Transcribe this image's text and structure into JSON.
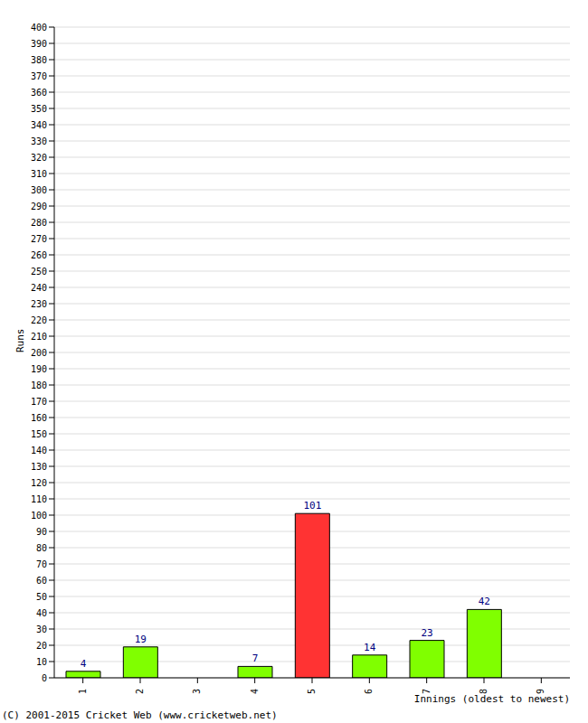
{
  "chart_data": {
    "type": "bar",
    "x_label": "Innings (oldest to newest)",
    "y_label": "Runs",
    "annotations": [
      "(C) 2001-2015 Cricket Web (www.cricketweb.net)"
    ],
    "categories": [
      "1",
      "2",
      "3",
      "4",
      "5",
      "6",
      "7",
      "8",
      "9"
    ],
    "values": [
      4,
      19,
      0,
      7,
      101,
      14,
      23,
      42,
      0
    ],
    "colors": [
      "#80ff00",
      "#80ff00",
      "#80ff00",
      "#80ff00",
      "#ff3333",
      "#80ff00",
      "#80ff00",
      "#80ff00",
      "#80ff00"
    ],
    "ylim": [
      0,
      400
    ],
    "yticks": [
      0,
      10,
      20,
      30,
      40,
      50,
      60,
      70,
      80,
      90,
      100,
      110,
      120,
      130,
      140,
      150,
      160,
      170,
      180,
      190,
      200,
      210,
      220,
      230,
      240,
      250,
      260,
      270,
      280,
      290,
      300,
      310,
      320,
      330,
      340,
      350,
      360,
      370,
      380,
      390,
      400
    ],
    "grid": true,
    "data_labels": true
  }
}
